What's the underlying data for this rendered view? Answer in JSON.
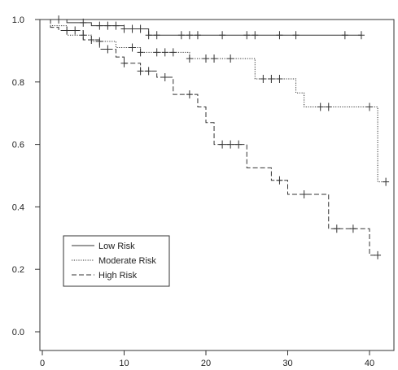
{
  "chart_data": {
    "type": "line",
    "title": "",
    "xlabel": "",
    "ylabel": "",
    "xlim": [
      0,
      43
    ],
    "ylim": [
      0,
      1.0
    ],
    "x_ticks": [
      0,
      10,
      20,
      30,
      40
    ],
    "y_ticks": [
      0.0,
      0.2,
      0.4,
      0.6,
      0.8,
      1.0
    ],
    "x_tick_labels": [
      "0",
      "10",
      "20",
      "30",
      "40"
    ],
    "y_tick_labels": [
      "0.0",
      "0.2",
      "0.4",
      "0.6",
      "0.8",
      "1.0"
    ],
    "grid": false,
    "legend": {
      "placement": "bottom-left"
    },
    "series": [
      {
        "name": "Low Risk",
        "line_style": "solid",
        "steps": [
          [
            0,
            1.0
          ],
          [
            3,
            0.99
          ],
          [
            6,
            0.98
          ],
          [
            10,
            0.97
          ],
          [
            13,
            0.95
          ],
          [
            39,
            0.95
          ]
        ],
        "censor_x": [
          2,
          5,
          7,
          8,
          9,
          10,
          11,
          12,
          13,
          14,
          17,
          18,
          19,
          22,
          25,
          26,
          29,
          31,
          37,
          39
        ]
      },
      {
        "name": "Moderate Risk",
        "line_style": "dotted",
        "steps": [
          [
            0,
            1.0
          ],
          [
            1,
            0.98
          ],
          [
            3,
            0.95
          ],
          [
            6,
            0.93
          ],
          [
            9,
            0.91
          ],
          [
            12,
            0.895
          ],
          [
            18,
            0.875
          ],
          [
            26,
            0.81
          ],
          [
            31,
            0.765
          ],
          [
            32,
            0.72
          ],
          [
            41,
            0.48
          ],
          [
            42,
            0.48
          ]
        ],
        "censor_x": [
          5,
          7,
          11,
          12,
          14,
          15,
          16,
          18,
          20,
          21,
          23,
          27,
          28,
          29,
          34,
          35,
          40,
          42
        ]
      },
      {
        "name": "High Risk",
        "line_style": "dashed",
        "steps": [
          [
            0,
            1.0
          ],
          [
            1,
            0.975
          ],
          [
            2,
            0.965
          ],
          [
            5,
            0.935
          ],
          [
            7,
            0.905
          ],
          [
            9,
            0.88
          ],
          [
            10,
            0.86
          ],
          [
            12,
            0.835
          ],
          [
            14,
            0.815
          ],
          [
            16,
            0.76
          ],
          [
            19,
            0.72
          ],
          [
            20,
            0.67
          ],
          [
            21,
            0.6
          ],
          [
            25,
            0.525
          ],
          [
            28,
            0.485
          ],
          [
            30,
            0.44
          ],
          [
            35,
            0.33
          ],
          [
            40,
            0.245
          ],
          [
            41,
            0.245
          ]
        ],
        "censor_x": [
          3,
          4,
          6,
          8,
          10,
          12,
          13,
          15,
          18,
          22,
          23,
          24,
          29,
          32,
          36,
          38,
          41
        ]
      }
    ]
  }
}
